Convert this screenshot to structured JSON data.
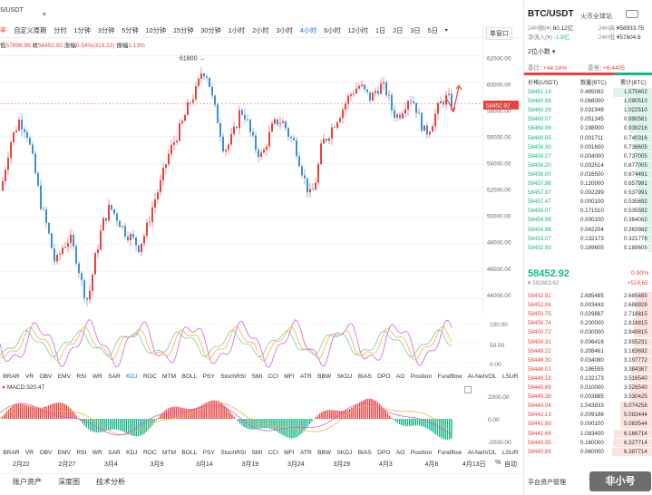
{
  "header": {
    "symbol_fragment": "S/USDT",
    "plus_button": "+"
  },
  "toolbar": {
    "chart_tab": "率",
    "custom_period": "自定义周期",
    "timeframes": [
      "分时",
      "1分钟",
      "3分钟",
      "5分钟",
      "10分钟",
      "15分钟",
      "30分钟",
      "1小时",
      "2小时",
      "3小时",
      "4小时",
      "6小时",
      "12小时",
      "1日",
      "2日",
      "3日",
      "5日"
    ],
    "active_timeframe": "4小时",
    "expand_icon": "chevron-down-icon",
    "pair_select": "单窗口"
  },
  "ohlc": {
    "low_label": "低",
    "low": "57899.99",
    "close_label": "收",
    "close": "58452.92",
    "change_label": "涨幅",
    "change": "0.54%(313.22)",
    "amp_label": "振幅",
    "amp": "1.13%"
  },
  "chart_data": {
    "type": "candlestick",
    "high_annotation": "61800",
    "price_axis_ticks": [
      "62000.00",
      "60000.00",
      "58000.00",
      "56000.00",
      "54000.00",
      "52000.00",
      "50000.00",
      "48000.00",
      "46000.00",
      "44000.00"
    ],
    "price_range": [
      43000,
      62500
    ],
    "current_price_label": "58452.92",
    "x_ticks": [
      "2月22",
      "2月27",
      "3月4",
      "3月9",
      "3月14",
      "3月19",
      "3月24",
      "3月29",
      "4月3",
      "4月8"
    ],
    "oscillator_ticks": [
      "100.00",
      "50.00",
      "0.00"
    ],
    "macd_ticks": [
      "2000.00",
      "0.00",
      "-2000.00"
    ],
    "macd_label": "MACD:320.47",
    "time_label": "4月13日",
    "percent_label": "%",
    "auto_label": "自动"
  },
  "indicators": [
    "BRAR",
    "VR",
    "OBV",
    "EMV",
    "RSI",
    "WR",
    "SAR",
    "KDJ",
    "ROC",
    "MTM",
    "BOLL",
    "PSY",
    "StochRSI",
    "SMI",
    "CCI",
    "MFI",
    "ATR",
    "BBW",
    "SKDJ",
    "BIAS",
    "DPO",
    "AO",
    "Position",
    "Fundflow",
    "AI-NetVOL",
    "LSUR"
  ],
  "active_indicator": "KDJ",
  "bottom_tabs": [
    "账户资产",
    "深度图",
    "技术分析"
  ],
  "right_panel": {
    "pair": "BTC/USDT",
    "exchange": "火币全球站",
    "vol_label": "24H额(¥)",
    "vol": "60.12亿",
    "high_label": "24H高",
    "high": "¥58933.75",
    "inflow_label": "净流入(¥)",
    "inflow": "-1.8亿",
    "low_label": "24H低",
    "low": "¥57604.6",
    "depth_select": "2位小数",
    "buy_ratio_label": "委比",
    "buy_ratio": "+44.18%",
    "diff_label": "委差",
    "diff": "+6.4405",
    "col_price": "价格(USDT)",
    "col_amount": "数量(BTC)",
    "col_total": "累计(BTC)",
    "asks": [
      [
        "58461.19",
        "0.485092",
        "1.575602"
      ],
      [
        "58460.88",
        "0.068000",
        "1.090510"
      ],
      [
        "58460.28",
        "0.031949",
        "1.022510"
      ],
      [
        "58460.07",
        "0.051345",
        "0.990561"
      ],
      [
        "58460.06",
        "0.198900",
        "0.939216"
      ],
      [
        "58460.05",
        "0.001711",
        "0.740316"
      ],
      [
        "58459.30",
        "0.001600",
        "0.738605"
      ],
      [
        "58459.27",
        "0.004000",
        "0.737005"
      ],
      [
        "58458.20",
        "0.002514",
        "0.677005"
      ],
      [
        "58458.00",
        "0.016500",
        "0.674491"
      ],
      [
        "58457.98",
        "0.120000",
        "0.657991"
      ],
      [
        "58457.97",
        "0.002299",
        "0.537991"
      ],
      [
        "58457.47",
        "0.000100",
        "0.535692"
      ],
      [
        "58455.07",
        "0.171510",
        "0.535592"
      ],
      [
        "58454.99",
        "0.000100",
        "0.364082"
      ],
      [
        "58454.98",
        "0.042204",
        "0.363982"
      ],
      [
        "58453.07",
        "0.132173",
        "0.321778"
      ],
      [
        "58452.93",
        "0.189605",
        "0.189605"
      ]
    ],
    "last_price": "58452.92",
    "last_change": "0.90%",
    "last_cny": "¥ 392803.62",
    "last_diff": "+519.65",
    "bids": [
      [
        "58452.92",
        "2.685485",
        "2.685485"
      ],
      [
        "58452.06",
        "0.003443",
        "2.688928"
      ],
      [
        "58450.75",
        "0.029887",
        "2.718815"
      ],
      [
        "58450.74",
        "0.200000",
        "2.918815"
      ],
      [
        "58450.72",
        "0.030000",
        "2.948815"
      ],
      [
        "58450.31",
        "0.006416",
        "2.955231"
      ],
      [
        "58449.22",
        "0.208461",
        "3.163692"
      ],
      [
        "58448.30",
        "0.034080",
        "3.197772"
      ],
      [
        "58448.01",
        "0.186595",
        "3.384367"
      ],
      [
        "58446.18",
        "0.132173",
        "3.516540"
      ],
      [
        "58445.89",
        "0.010000",
        "3.526540"
      ],
      [
        "58445.38",
        "0.003885",
        "3.530425"
      ],
      [
        "58444.04",
        "1.543833",
        "5.074258"
      ],
      [
        "58442.13",
        "0.009186",
        "5.083444"
      ],
      [
        "58441.99",
        "0.000100",
        "5.083544"
      ],
      [
        "58441.66",
        "1.083400",
        "6.166714"
      ],
      [
        "58440.95",
        "0.160000",
        "6.327714"
      ],
      [
        "58440.89",
        "0.060000",
        "6.387714"
      ]
    ],
    "footer": "平台资产管理",
    "watermark": "非小号"
  }
}
